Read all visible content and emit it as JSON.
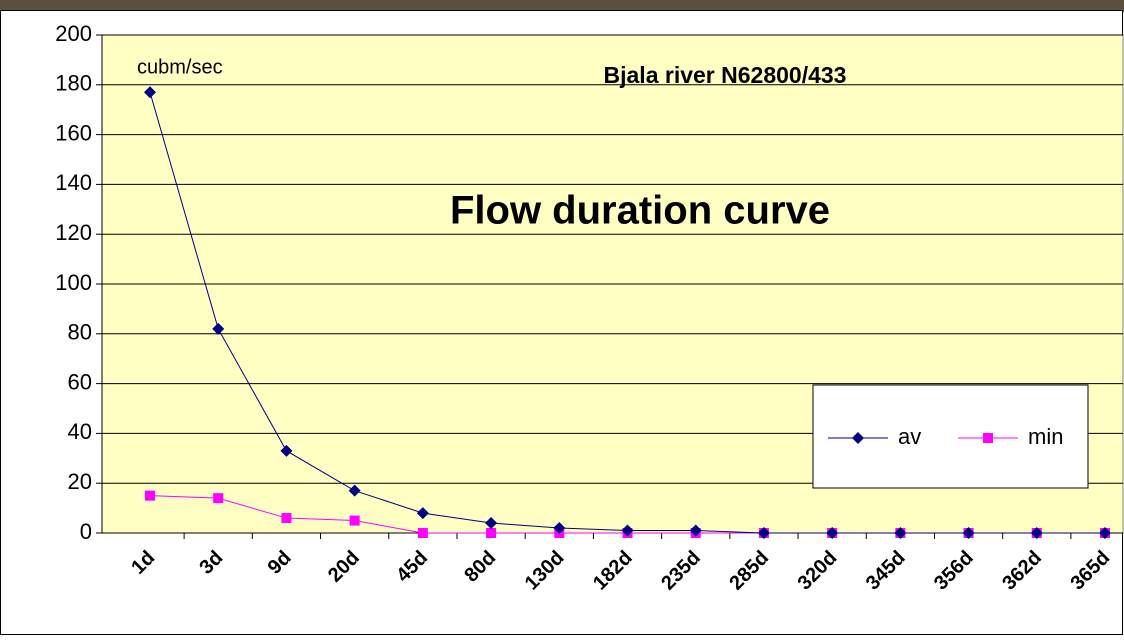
{
  "chart_data": {
    "type": "line",
    "title": "Flow duration curve",
    "subtitle": "Bjala river N62800/433",
    "y_label": "cubm/sec",
    "categories": [
      "1d",
      "3d",
      "9d",
      "20d",
      "45d",
      "80d",
      "130d",
      "182d",
      "235d",
      "285d",
      "320d",
      "345d",
      "356d",
      "362d",
      "365d"
    ],
    "series": [
      {
        "name": "av",
        "color": "#000080",
        "marker": "diamond",
        "values": [
          177,
          82,
          33,
          17,
          8,
          4,
          2,
          1,
          1,
          0,
          0,
          0,
          0,
          0,
          0
        ]
      },
      {
        "name": "min",
        "color": "#ff00ff",
        "marker": "square",
        "values": [
          15,
          14,
          6,
          5,
          0,
          0,
          0,
          0,
          0,
          0,
          0,
          0,
          0,
          0,
          0
        ]
      }
    ],
    "ylim": [
      0,
      200
    ],
    "yticks": [
      0,
      20,
      40,
      60,
      80,
      100,
      120,
      140,
      160,
      180,
      200
    ],
    "grid": true,
    "legend": "right"
  }
}
